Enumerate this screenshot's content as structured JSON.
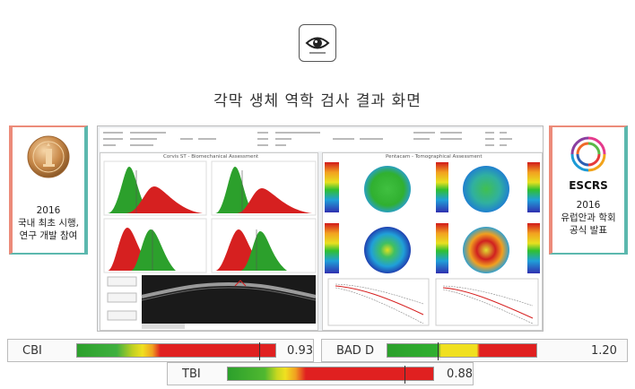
{
  "header": {
    "icon": "eye-icon",
    "title": "각막 생체 역학 검사 결과 화면"
  },
  "left_card": {
    "icon": "medal-icon",
    "year": "2016",
    "line1": "국내 최초 시행,",
    "line2": "연구 개발 참여"
  },
  "right_card": {
    "logo_text": "ESCRS",
    "year": "2016",
    "line1": "유럽안과 학회",
    "line2": "공식 발표"
  },
  "screen": {
    "left_title": "Corvis ST - Biomechanical Assessment",
    "right_title": "Pentacam - Tomographical Assessment"
  },
  "indices": [
    {
      "label": "CBI",
      "value": "0.93",
      "fraction": 0.92
    },
    {
      "label": "BAD D",
      "value": "1.20",
      "fraction": 0.34
    },
    {
      "label": "TBI",
      "value": "0.88",
      "fraction": 0.86
    }
  ],
  "colors": {
    "green": "#2ca02c",
    "red": "#e02020",
    "accent_left": "#ec8b7a",
    "accent_right": "#5cb8ae"
  }
}
